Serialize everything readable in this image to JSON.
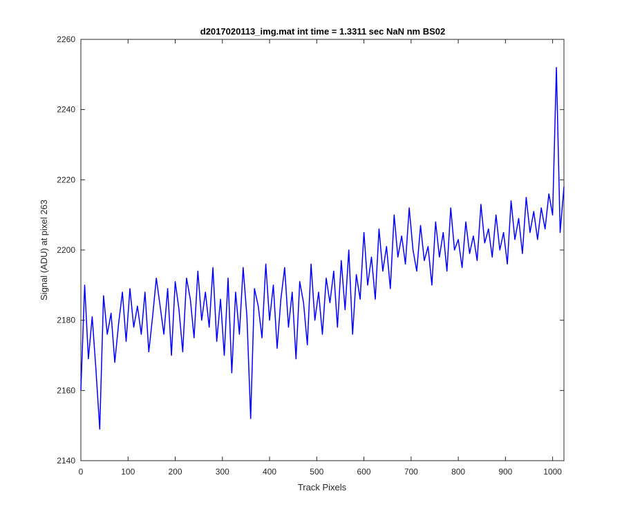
{
  "chart_data": {
    "type": "line",
    "title": "d2017020113_img.mat int time = 1.3311 sec  NaN nm BS02",
    "xlabel": "Track Pixels",
    "ylabel": "Signal (ADU) at pixel 263",
    "xlim": [
      0,
      1024
    ],
    "ylim": [
      2140,
      2260
    ],
    "xticks": [
      "0",
      "100",
      "200",
      "300",
      "400",
      "500",
      "600",
      "700",
      "800",
      "900",
      "1000"
    ],
    "yticks": [
      "2140",
      "2160",
      "2180",
      "2200",
      "2220",
      "2240",
      "2260"
    ],
    "grid": false,
    "legend": "none",
    "series": [
      {
        "color": "#0000ff",
        "x": [
          0,
          8,
          16,
          24,
          32,
          40,
          48,
          56,
          64,
          72,
          80,
          88,
          96,
          104,
          112,
          120,
          128,
          136,
          144,
          152,
          160,
          168,
          176,
          184,
          192,
          200,
          208,
          216,
          224,
          232,
          240,
          248,
          256,
          264,
          272,
          280,
          288,
          296,
          304,
          312,
          320,
          328,
          336,
          344,
          352,
          360,
          368,
          376,
          384,
          392,
          400,
          408,
          416,
          424,
          432,
          440,
          448,
          456,
          464,
          472,
          480,
          488,
          496,
          504,
          512,
          520,
          528,
          536,
          544,
          552,
          560,
          568,
          576,
          584,
          592,
          600,
          608,
          616,
          624,
          632,
          640,
          648,
          656,
          664,
          672,
          680,
          688,
          696,
          704,
          712,
          720,
          728,
          736,
          744,
          752,
          760,
          768,
          776,
          784,
          792,
          800,
          808,
          816,
          824,
          832,
          840,
          848,
          856,
          864,
          872,
          880,
          888,
          896,
          904,
          912,
          920,
          928,
          936,
          944,
          952,
          960,
          968,
          976,
          984,
          992,
          1000,
          1008,
          1016,
          1024
        ],
        "y": [
          2160,
          2190,
          2169,
          2181,
          2166,
          2149,
          2187,
          2176,
          2182,
          2168,
          2179,
          2188,
          2174,
          2189,
          2178,
          2184,
          2176,
          2188,
          2171,
          2181,
          2192,
          2184,
          2176,
          2189,
          2170,
          2191,
          2183,
          2171,
          2192,
          2186,
          2175,
          2194,
          2180,
          2188,
          2178,
          2195,
          2174,
          2186,
          2170,
          2192,
          2165,
          2188,
          2176,
          2195,
          2181,
          2152,
          2189,
          2184,
          2175,
          2196,
          2180,
          2190,
          2172,
          2186,
          2195,
          2178,
          2188,
          2169,
          2191,
          2185,
          2173,
          2196,
          2180,
          2188,
          2176,
          2192,
          2185,
          2194,
          2178,
          2197,
          2183,
          2200,
          2176,
          2193,
          2186,
          2205,
          2190,
          2198,
          2186,
          2206,
          2194,
          2201,
          2189,
          2210,
          2198,
          2204,
          2196,
          2212,
          2200,
          2194,
          2207,
          2197,
          2201,
          2190,
          2208,
          2198,
          2205,
          2194,
          2212,
          2200,
          2203,
          2195,
          2208,
          2199,
          2204,
          2197,
          2213,
          2202,
          2206,
          2198,
          2210,
          2200,
          2205,
          2196,
          2214,
          2203,
          2209,
          2199,
          2215,
          2205,
          2211,
          2203,
          2212,
          2206,
          2216,
          2210,
          2252,
          2205,
          2218
        ]
      }
    ]
  }
}
